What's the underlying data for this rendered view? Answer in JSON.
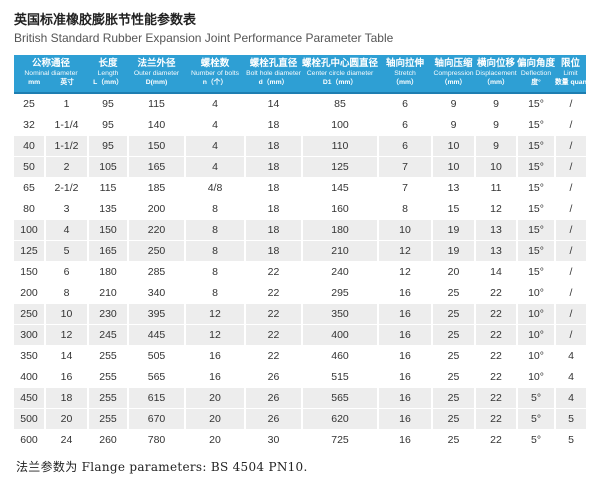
{
  "title": {
    "zh": "英国标准橡胶膨胀节性能参数表",
    "en": "British Standard Rubber Expansion Joint Performance Parameter Table"
  },
  "table": {
    "columns": [
      {
        "zh": "公称通径",
        "en": "Nominal diameter",
        "units": [
          "mm",
          "英寸"
        ],
        "span": 2
      },
      {
        "zh": "长度",
        "en": "Length",
        "unit": "L（mm）"
      },
      {
        "zh": "法兰外径",
        "en": "Outer diameter",
        "unit": "D(mm)"
      },
      {
        "zh": "螺栓数",
        "en": "Number of bolts",
        "unit": "n（个）"
      },
      {
        "zh": "螺栓孔直径",
        "en": "Bolt hole diameter",
        "unit": "d（mm）"
      },
      {
        "zh": "螺栓孔中心圆直径",
        "en": "Center circle diameter",
        "unit": "D1（mm）"
      },
      {
        "zh": "轴向拉伸",
        "en": "Stretch",
        "unit": "（mm）"
      },
      {
        "zh": "轴向压缩",
        "en": "Compression",
        "unit": "（mm）"
      },
      {
        "zh": "横向位移",
        "en": "Displacement",
        "unit": "（mm）"
      },
      {
        "zh": "偏向角度",
        "en": "Deflection",
        "unit": "度°"
      },
      {
        "zh": "限位",
        "en": "Limit",
        "unit": "数量 quantity"
      }
    ],
    "rows": [
      [
        "25",
        "1",
        "95",
        "115",
        "4",
        "14",
        "85",
        "6",
        "9",
        "9",
        "15°",
        "/"
      ],
      [
        "32",
        "1-1/4",
        "95",
        "140",
        "4",
        "18",
        "100",
        "6",
        "9",
        "9",
        "15°",
        "/"
      ],
      [
        "40",
        "1-1/2",
        "95",
        "150",
        "4",
        "18",
        "110",
        "6",
        "10",
        "9",
        "15°",
        "/"
      ],
      [
        "50",
        "2",
        "105",
        "165",
        "4",
        "18",
        "125",
        "7",
        "10",
        "10",
        "15°",
        "/"
      ],
      [
        "65",
        "2-1/2",
        "115",
        "185",
        "4/8",
        "18",
        "145",
        "7",
        "13",
        "11",
        "15°",
        "/"
      ],
      [
        "80",
        "3",
        "135",
        "200",
        "8",
        "18",
        "160",
        "8",
        "15",
        "12",
        "15°",
        "/"
      ],
      [
        "100",
        "4",
        "150",
        "220",
        "8",
        "18",
        "180",
        "10",
        "19",
        "13",
        "15°",
        "/"
      ],
      [
        "125",
        "5",
        "165",
        "250",
        "8",
        "18",
        "210",
        "12",
        "19",
        "13",
        "15°",
        "/"
      ],
      [
        "150",
        "6",
        "180",
        "285",
        "8",
        "22",
        "240",
        "12",
        "20",
        "14",
        "15°",
        "/"
      ],
      [
        "200",
        "8",
        "210",
        "340",
        "8",
        "22",
        "295",
        "16",
        "25",
        "22",
        "10°",
        "/"
      ],
      [
        "250",
        "10",
        "230",
        "395",
        "12",
        "22",
        "350",
        "16",
        "25",
        "22",
        "10°",
        "/"
      ],
      [
        "300",
        "12",
        "245",
        "445",
        "12",
        "22",
        "400",
        "16",
        "25",
        "22",
        "10°",
        "/"
      ],
      [
        "350",
        "14",
        "255",
        "505",
        "16",
        "22",
        "460",
        "16",
        "25",
        "22",
        "10°",
        "4"
      ],
      [
        "400",
        "16",
        "255",
        "565",
        "16",
        "26",
        "515",
        "16",
        "25",
        "22",
        "10°",
        "4"
      ],
      [
        "450",
        "18",
        "255",
        "615",
        "20",
        "26",
        "565",
        "16",
        "25",
        "22",
        "5°",
        "4"
      ],
      [
        "500",
        "20",
        "255",
        "670",
        "20",
        "26",
        "620",
        "16",
        "25",
        "22",
        "5°",
        "5"
      ],
      [
        "600",
        "24",
        "260",
        "780",
        "20",
        "30",
        "725",
        "16",
        "25",
        "22",
        "5°",
        "5"
      ]
    ],
    "striped_rows": [
      2,
      3,
      6,
      7,
      10,
      11,
      14,
      15
    ]
  },
  "footer": {
    "note": "法兰参数为 Flange parameters: BS 4504 PN10."
  },
  "colors": {
    "header_bg": "#2E9FD4",
    "header_border": "#1E7EB1",
    "stripe": "#EDEDED",
    "text": "#333333"
  }
}
